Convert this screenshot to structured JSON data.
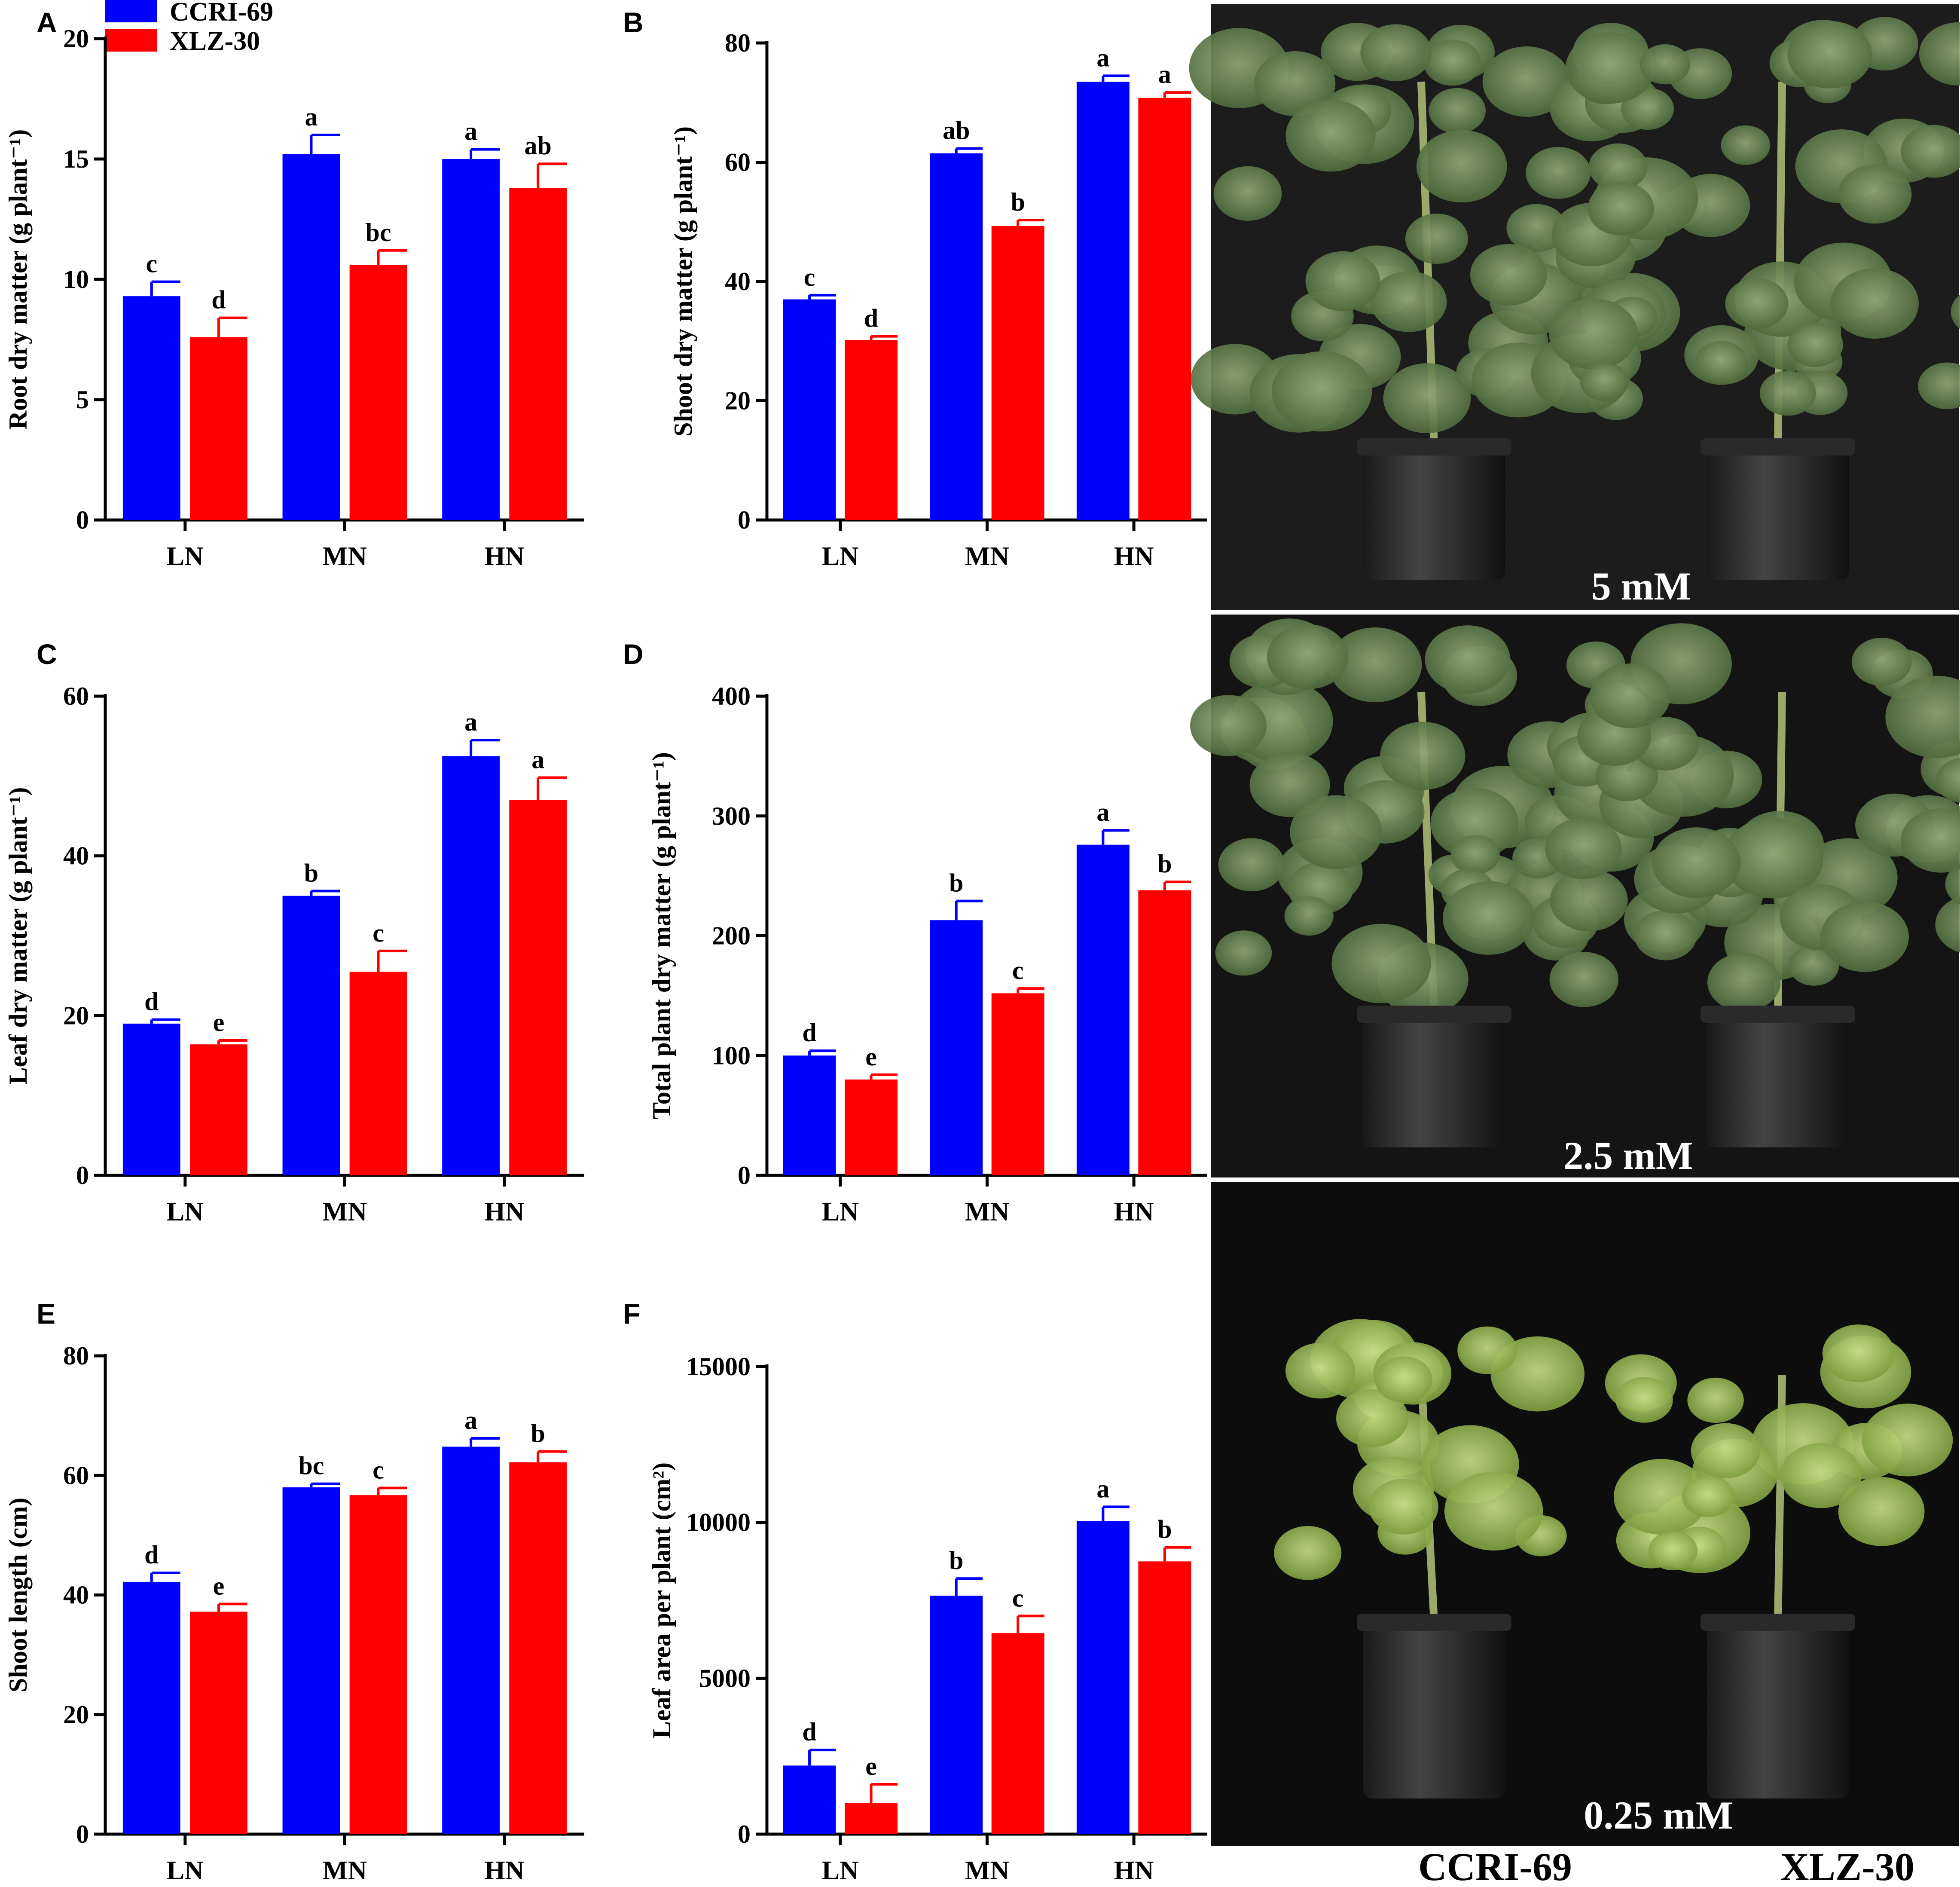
{
  "legend": {
    "position": "top-left",
    "items": [
      {
        "name": "CCRI-69",
        "color": "#0000ff"
      },
      {
        "name": "XLZ-30",
        "color": "#ff0000"
      }
    ]
  },
  "chart_data": [
    {
      "panel": "A",
      "type": "bar",
      "categories": [
        "LN",
        "MN",
        "HN"
      ],
      "ylabel": "Root dry matter (g plant⁻¹)",
      "ylim": [
        0,
        20
      ],
      "yticks": [
        0,
        5,
        10,
        15,
        20
      ],
      "series": [
        {
          "name": "CCRI-69",
          "color": "#0000ff",
          "values": [
            9.3,
            15.2,
            15.0
          ],
          "errors": [
            0.6,
            0.8,
            0.4
          ],
          "letters": [
            "c",
            "a",
            "a"
          ]
        },
        {
          "name": "XLZ-30",
          "color": "#ff0000",
          "values": [
            7.6,
            10.6,
            13.8
          ],
          "errors": [
            0.8,
            0.6,
            1.0
          ],
          "letters": [
            "d",
            "bc",
            "ab"
          ]
        }
      ]
    },
    {
      "panel": "B",
      "type": "bar",
      "categories": [
        "LN",
        "MN",
        "HN"
      ],
      "ylabel": "Shoot dry matter (g plant⁻¹)",
      "ylim": [
        0,
        80
      ],
      "yticks": [
        0,
        20,
        40,
        60,
        80
      ],
      "series": [
        {
          "name": "CCRI-69",
          "color": "#0000ff",
          "values": [
            37.0,
            61.5,
            73.5
          ],
          "errors": [
            0.7,
            0.8,
            1.0
          ],
          "letters": [
            "c",
            "ab",
            "a"
          ]
        },
        {
          "name": "XLZ-30",
          "color": "#ff0000",
          "values": [
            30.2,
            49.3,
            70.8
          ],
          "errors": [
            0.6,
            1.0,
            0.9
          ],
          "letters": [
            "d",
            "b",
            "a"
          ]
        }
      ]
    },
    {
      "panel": "C",
      "type": "bar",
      "categories": [
        "LN",
        "MN",
        "HN"
      ],
      "ylabel": "Leaf dry matter (g plant⁻¹)",
      "ylim": [
        0,
        60
      ],
      "yticks": [
        0,
        20,
        40,
        60
      ],
      "series": [
        {
          "name": "CCRI-69",
          "color": "#0000ff",
          "values": [
            19.0,
            35.0,
            52.5
          ],
          "errors": [
            0.5,
            0.6,
            2.0
          ],
          "letters": [
            "d",
            "b",
            "a"
          ]
        },
        {
          "name": "XLZ-30",
          "color": "#ff0000",
          "values": [
            16.4,
            25.5,
            47.0
          ],
          "errors": [
            0.5,
            2.6,
            2.8
          ],
          "letters": [
            "e",
            "c",
            "a"
          ]
        }
      ]
    },
    {
      "panel": "D",
      "type": "bar",
      "categories": [
        "LN",
        "MN",
        "HN"
      ],
      "ylabel": "Total plant dry matter (g plant⁻¹)",
      "ylim": [
        0,
        400
      ],
      "yticks": [
        0,
        100,
        200,
        300,
        400
      ],
      "series": [
        {
          "name": "CCRI-69",
          "color": "#0000ff",
          "values": [
            100,
            213,
            276
          ],
          "errors": [
            4,
            16,
            12
          ],
          "letters": [
            "d",
            "b",
            "a"
          ]
        },
        {
          "name": "XLZ-30",
          "color": "#ff0000",
          "values": [
            80,
            152,
            238
          ],
          "errors": [
            4,
            4,
            7
          ],
          "letters": [
            "e",
            "c",
            "b"
          ]
        }
      ]
    },
    {
      "panel": "E",
      "type": "bar",
      "categories": [
        "LN",
        "MN",
        "HN"
      ],
      "ylabel": "Shoot length (cm)",
      "ylim": [
        0,
        80
      ],
      "yticks": [
        0,
        20,
        40,
        60,
        80
      ],
      "series": [
        {
          "name": "CCRI-69",
          "color": "#0000ff",
          "values": [
            42.2,
            58.0,
            64.8
          ],
          "errors": [
            1.5,
            0.6,
            1.4
          ],
          "letters": [
            "d",
            "bc",
            "a"
          ]
        },
        {
          "name": "XLZ-30",
          "color": "#ff0000",
          "values": [
            37.2,
            56.7,
            62.2
          ],
          "errors": [
            1.3,
            1.2,
            1.8
          ],
          "letters": [
            "e",
            "c",
            "b"
          ]
        }
      ]
    },
    {
      "panel": "F",
      "type": "bar",
      "categories": [
        "LN",
        "MN",
        "HN"
      ],
      "ylabel": "Leaf area per plant (cm²)",
      "ylim": [
        0,
        15000
      ],
      "yticks": [
        0,
        5000,
        10000,
        15000
      ],
      "series": [
        {
          "name": "CCRI-69",
          "color": "#0000ff",
          "values": [
            2200,
            7650,
            10050
          ],
          "errors": [
            500,
            550,
            450
          ],
          "letters": [
            "d",
            "b",
            "a"
          ]
        },
        {
          "name": "XLZ-30",
          "color": "#ff0000",
          "values": [
            1000,
            6450,
            8750
          ],
          "errors": [
            600,
            550,
            450
          ],
          "letters": [
            "e",
            "c",
            "b"
          ]
        }
      ]
    }
  ],
  "photos": [
    {
      "label": "5 mM"
    },
    {
      "label": "2.5 mM"
    },
    {
      "label": "0.25 mM"
    }
  ],
  "photo_captions": [
    "CCRI-69",
    "XLZ-30"
  ]
}
